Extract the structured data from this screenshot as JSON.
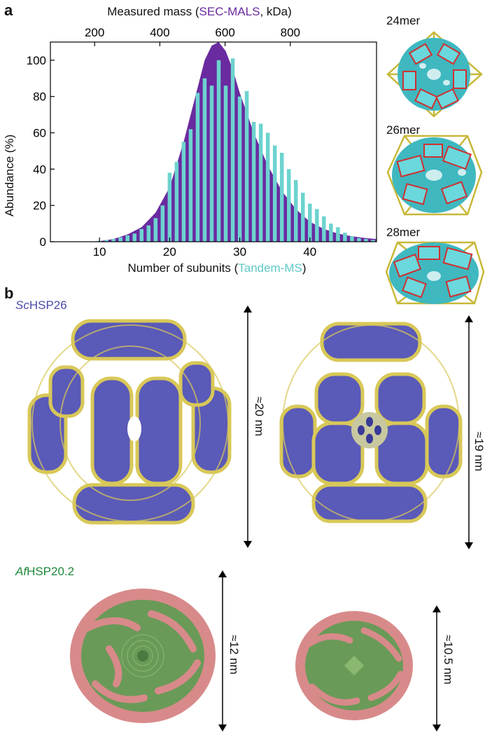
{
  "figure": {
    "panel_a_label": "a",
    "panel_b_label": "b",
    "top_axis": {
      "prefix": "Measured mass (",
      "highlight": "SEC-MALS",
      "suffix": ", kDa)"
    },
    "bottom_axis": {
      "prefix": "Number of subunits (",
      "highlight": "Tandem-MS",
      "suffix": ")"
    },
    "ylabel": "Abundance (%)",
    "structures": [
      "24mer",
      "26mer",
      "28mer"
    ],
    "colors": {
      "purple": "#6a2aa0",
      "teal": "#6dd3cf",
      "blue": "#5a5ab8",
      "yellow": "#d8c858",
      "green": "#5a9a4a",
      "pink": "#d88a8a"
    }
  },
  "chart_data": {
    "type": "bar",
    "xlim": [
      3,
      49.5
    ],
    "ylim": [
      0,
      110
    ],
    "x_ticks": [
      "10",
      "20",
      "30",
      "40"
    ],
    "y_ticks": [
      "0",
      "20",
      "40",
      "60",
      "80",
      "100"
    ],
    "top_ticks": [
      "200",
      "400",
      "600",
      "800"
    ],
    "series": [
      {
        "name": "SEC-MALS",
        "type": "area",
        "x": [
          3,
          8,
          10,
          12,
          14,
          16,
          18,
          20,
          22,
          24,
          25,
          26,
          27,
          28,
          29,
          30,
          32,
          34,
          36,
          38,
          40,
          42,
          44,
          46,
          48,
          49.5
        ],
        "values": [
          0,
          0,
          0.3,
          1.5,
          4,
          8,
          16,
          30,
          55,
          85,
          100,
          108,
          110,
          105,
          95,
          82,
          60,
          42,
          28,
          18,
          11,
          7,
          4.5,
          3,
          2,
          1.5
        ]
      },
      {
        "name": "Tandem-MS",
        "type": "bar",
        "x": [
          10,
          11,
          12,
          13,
          14,
          15,
          16,
          17,
          18,
          19,
          20,
          21,
          22,
          23,
          24,
          25,
          26,
          27,
          28,
          29,
          30,
          31,
          32,
          33,
          34,
          35,
          36,
          37,
          38,
          39,
          40,
          41,
          42,
          43,
          44,
          45,
          46,
          47,
          48,
          49
        ],
        "values": [
          0.5,
          1,
          1.5,
          2.5,
          3.5,
          4.5,
          7,
          9,
          13,
          20,
          38,
          44,
          55,
          62,
          82,
          90,
          86,
          100,
          86,
          101,
          80,
          83,
          66,
          65,
          60,
          53,
          49,
          40,
          34,
          27,
          21,
          18,
          14,
          10,
          8,
          5,
          3,
          2,
          1.5,
          1
        ]
      }
    ]
  },
  "panel_b": {
    "sc_label_italic": "Sc",
    "sc_label_rest": "HSP26",
    "af_label_italic": "Af",
    "af_label_rest": "HSP20.2",
    "dims": [
      "≈20 nm",
      "≈19 nm",
      "≈12 nm",
      "≈10.5 nm"
    ]
  }
}
